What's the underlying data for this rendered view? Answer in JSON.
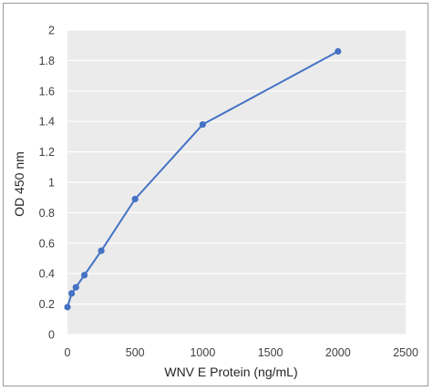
{
  "chart_data": {
    "type": "line",
    "title": "",
    "xlabel": "WNV E Protein (ng/mL)",
    "ylabel": "OD 450 nm",
    "xlim": [
      0,
      2500
    ],
    "ylim": [
      0,
      2
    ],
    "x_ticks": [
      "0",
      "500",
      "1000",
      "1500",
      "2000",
      "2500"
    ],
    "y_ticks": [
      "0",
      "0.2",
      "0.4",
      "0.6",
      "0.8",
      "1",
      "1.2",
      "1.4",
      "1.6",
      "1.8",
      "2"
    ],
    "grid": "horizontal",
    "legend": "none",
    "series": [
      {
        "color": "#4472c4",
        "x": [
          0,
          31.25,
          62.5,
          125,
          250,
          500,
          1000,
          2000
        ],
        "y": [
          0.18,
          0.27,
          0.31,
          0.39,
          0.55,
          0.89,
          1.38,
          1.86
        ]
      }
    ]
  },
  "colors": {
    "plot_background": "#ebebeb",
    "gridline": "#ffffff",
    "frame_border": "#9a9a9a"
  }
}
